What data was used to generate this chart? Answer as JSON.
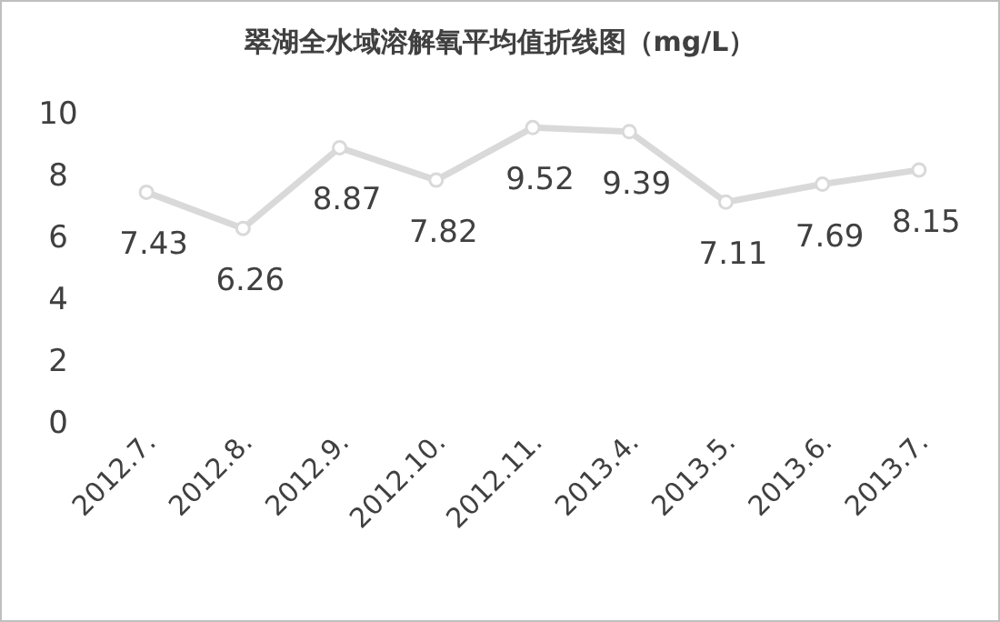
{
  "chart_data": {
    "type": "line",
    "title": "翠湖全水域溶解氧平均值折线图（mg/L）",
    "categories": [
      "2012.7.",
      "2012.8.",
      "2012.9.",
      "2012.10.",
      "2012.11.",
      "2013.4.",
      "2013.5.",
      "2013.6.",
      "2013.7."
    ],
    "series": [
      {
        "color": "#d9d9d9",
        "values": [
          7.43,
          6.26,
          8.87,
          7.82,
          9.52,
          9.39,
          7.11,
          7.69,
          8.15
        ]
      }
    ],
    "ylim": [
      0,
      10
    ],
    "yticks": [
      0,
      2,
      4,
      6,
      8,
      10
    ],
    "data_labels": true,
    "marker": "circle",
    "grid": false
  }
}
